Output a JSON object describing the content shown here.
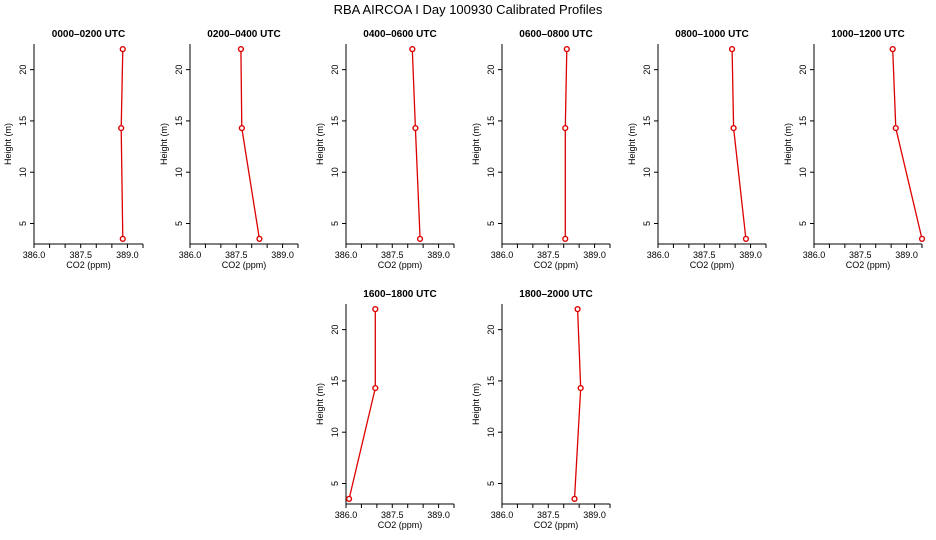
{
  "title": "RBA AIRCOA I  Day 100930  Calibrated Profiles",
  "colors": {
    "series": "#dd0000",
    "axis": "#000000",
    "background": "#ffffff"
  },
  "chart_data": [
    {
      "type": "line",
      "title": "0000–0200 UTC",
      "xlabel": "CO2 (ppm)",
      "ylabel": "Height (m)",
      "xlim": [
        386.0,
        389.5
      ],
      "ylim": [
        3,
        22.5
      ],
      "xticks": [
        "386.0",
        "387.5",
        "389.0"
      ],
      "yticks": [
        "5",
        "10",
        "15",
        "20"
      ],
      "points": [
        {
          "x": 388.85,
          "y": 22
        },
        {
          "x": 388.8,
          "y": 14.3
        },
        {
          "x": 388.85,
          "y": 3.5
        }
      ]
    },
    {
      "type": "line",
      "title": "0200–0400 UTC",
      "xlabel": "CO2 (ppm)",
      "ylabel": "Height (m)",
      "xlim": [
        386.0,
        389.5
      ],
      "ylim": [
        3,
        22.5
      ],
      "xticks": [
        "386.0",
        "387.5",
        "389.0"
      ],
      "yticks": [
        "5",
        "10",
        "15",
        "20"
      ],
      "points": [
        {
          "x": 387.65,
          "y": 22
        },
        {
          "x": 387.68,
          "y": 14.3
        },
        {
          "x": 388.25,
          "y": 3.5
        }
      ]
    },
    {
      "type": "line",
      "title": "0400–0600 UTC",
      "xlabel": "CO2 (ppm)",
      "ylabel": "Height (m)",
      "xlim": [
        386.0,
        389.5
      ],
      "ylim": [
        3,
        22.5
      ],
      "xticks": [
        "386.0",
        "387.5",
        "389.0"
      ],
      "yticks": [
        "5",
        "10",
        "15",
        "20"
      ],
      "points": [
        {
          "x": 388.15,
          "y": 22
        },
        {
          "x": 388.25,
          "y": 14.3
        },
        {
          "x": 388.4,
          "y": 3.5
        }
      ]
    },
    {
      "type": "line",
      "title": "0600–0800 UTC",
      "xlabel": "CO2 (ppm)",
      "ylabel": "Height (m)",
      "xlim": [
        386.0,
        389.5
      ],
      "ylim": [
        3,
        22.5
      ],
      "xticks": [
        "386.0",
        "387.5",
        "389.0"
      ],
      "yticks": [
        "5",
        "10",
        "15",
        "20"
      ],
      "points": [
        {
          "x": 388.1,
          "y": 22
        },
        {
          "x": 388.05,
          "y": 14.3
        },
        {
          "x": 388.05,
          "y": 3.5
        }
      ]
    },
    {
      "type": "line",
      "title": "0800–1000 UTC",
      "xlabel": "CO2 (ppm)",
      "ylabel": "Height (m)",
      "xlim": [
        386.0,
        389.5
      ],
      "ylim": [
        3,
        22.5
      ],
      "xticks": [
        "386.0",
        "387.5",
        "389.0"
      ],
      "yticks": [
        "5",
        "10",
        "15",
        "20"
      ],
      "points": [
        {
          "x": 388.4,
          "y": 22
        },
        {
          "x": 388.45,
          "y": 14.3
        },
        {
          "x": 388.85,
          "y": 3.5
        }
      ]
    },
    {
      "type": "line",
      "title": "1000–1200 UTC",
      "xlabel": "CO2 (ppm)",
      "ylabel": "Height (m)",
      "xlim": [
        386.0,
        389.5
      ],
      "ylim": [
        3,
        22.5
      ],
      "xticks": [
        "386.0",
        "387.5",
        "389.0"
      ],
      "yticks": [
        "5",
        "10",
        "15",
        "20"
      ],
      "points": [
        {
          "x": 388.55,
          "y": 22
        },
        {
          "x": 388.65,
          "y": 14.3
        },
        {
          "x": 389.5,
          "y": 3.5
        }
      ]
    },
    {
      "type": "line",
      "title": "1600–1800 UTC",
      "xlabel": "CO2 (ppm)",
      "ylabel": "Height (m)",
      "xlim": [
        386.0,
        389.5
      ],
      "ylim": [
        3,
        22.5
      ],
      "xticks": [
        "386.0",
        "387.5",
        "389.0"
      ],
      "yticks": [
        "5",
        "10",
        "15",
        "20"
      ],
      "points": [
        {
          "x": 386.95,
          "y": 22
        },
        {
          "x": 386.95,
          "y": 14.3
        },
        {
          "x": 386.1,
          "y": 3.5
        }
      ]
    },
    {
      "type": "line",
      "title": "1800–2000 UTC",
      "xlabel": "CO2 (ppm)",
      "ylabel": "Height (m)",
      "xlim": [
        386.0,
        389.5
      ],
      "ylim": [
        3,
        22.5
      ],
      "xticks": [
        "386.0",
        "387.5",
        "389.0"
      ],
      "yticks": [
        "5",
        "10",
        "15",
        "20"
      ],
      "points": [
        {
          "x": 388.45,
          "y": 22
        },
        {
          "x": 388.55,
          "y": 14.3
        },
        {
          "x": 388.35,
          "y": 3.5
        }
      ]
    }
  ]
}
